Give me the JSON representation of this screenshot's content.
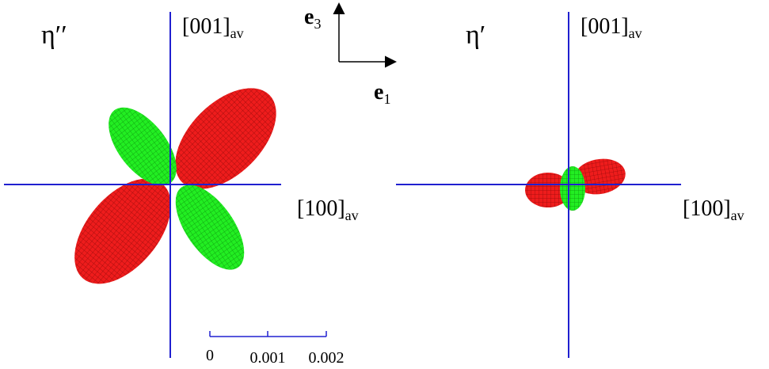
{
  "left_panel": {
    "label": "η′′",
    "vertical_axis": {
      "label": "[001]",
      "subscript": "av"
    },
    "horizontal_axis": {
      "label": "[100]",
      "subscript": "av"
    }
  },
  "right_panel": {
    "label": "η′",
    "vertical_axis": {
      "label": "[001]",
      "subscript": "av"
    },
    "horizontal_axis": {
      "label": "[100]",
      "subscript": "av"
    }
  },
  "frame": {
    "e3": {
      "label": "e",
      "subscript": "3"
    },
    "e1": {
      "label": "e",
      "subscript": "1"
    }
  },
  "scale_bar": {
    "labels": [
      "0",
      "0.001",
      "0.002"
    ]
  }
}
